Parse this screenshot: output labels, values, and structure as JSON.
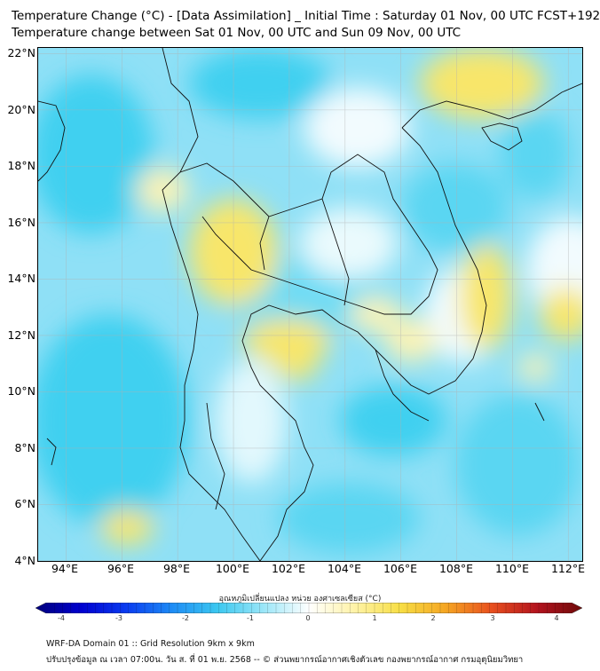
{
  "header": {
    "title_line1": "Temperature Change (°C) - [Data Assimilation] _ Initial Time : Saturday 01 Nov, 00 UTC FCST+192",
    "title_line2": "Temperature change between Sat 01 Nov, 00 UTC and Sun 09 Nov, 00 UTC"
  },
  "map": {
    "lat_labels": [
      "22°N",
      "20°N",
      "18°N",
      "16°N",
      "14°N",
      "12°N",
      "10°N",
      "8°N",
      "6°N",
      "4°N"
    ],
    "lat_values": [
      22,
      20,
      18,
      16,
      14,
      12,
      10,
      8,
      6,
      4
    ],
    "lon_labels": [
      "94°E",
      "96°E",
      "98°E",
      "100°E",
      "102°E",
      "104°E",
      "106°E",
      "108°E",
      "110°E",
      "112°E"
    ],
    "lon_values": [
      94,
      96,
      98,
      100,
      102,
      104,
      106,
      108,
      110,
      112
    ],
    "extent": {
      "lon_min": 93,
      "lon_max": 112.5,
      "lat_min": 4,
      "lat_max": 22.2
    },
    "colors": {
      "cyan": "#3fd0f0",
      "light_cyan": "#b4ecfa",
      "yellow": "#f8e66a",
      "light_yellow": "#fbf3b5",
      "white": "#ffffff",
      "coast": "#111111"
    }
  },
  "colorbar": {
    "title": "อุณหภูมิเปลี่ยนแปลง หน่วย องศาเซลเซียส (°C)",
    "min": -4,
    "max": 4,
    "ticks": [
      "-4",
      "-3",
      "-2",
      "-1",
      "0",
      "1",
      "2",
      "3",
      "4"
    ],
    "stops": [
      "#00007a",
      "#0000d0",
      "#0a3cf0",
      "#1e8cf5",
      "#3cc8f0",
      "#9ae6f8",
      "#ffffff",
      "#fff3a8",
      "#f7de45",
      "#f5a623",
      "#e8501e",
      "#b4141e",
      "#6e0a0a"
    ]
  },
  "footer": {
    "line1": "WRF-DA Domain 01 :: Grid Resolution 9km x 9km",
    "line2": "ปรับปรุงข้อมูล ณ เวลา 07:00น. วัน ส. ที่ 01 พ.ย. 2568 -- © ส่วนพยากรณ์อากาศเชิงตัวเลข กองพยากรณ์อากาศ กรมอุตุนิยมวิทยา"
  }
}
